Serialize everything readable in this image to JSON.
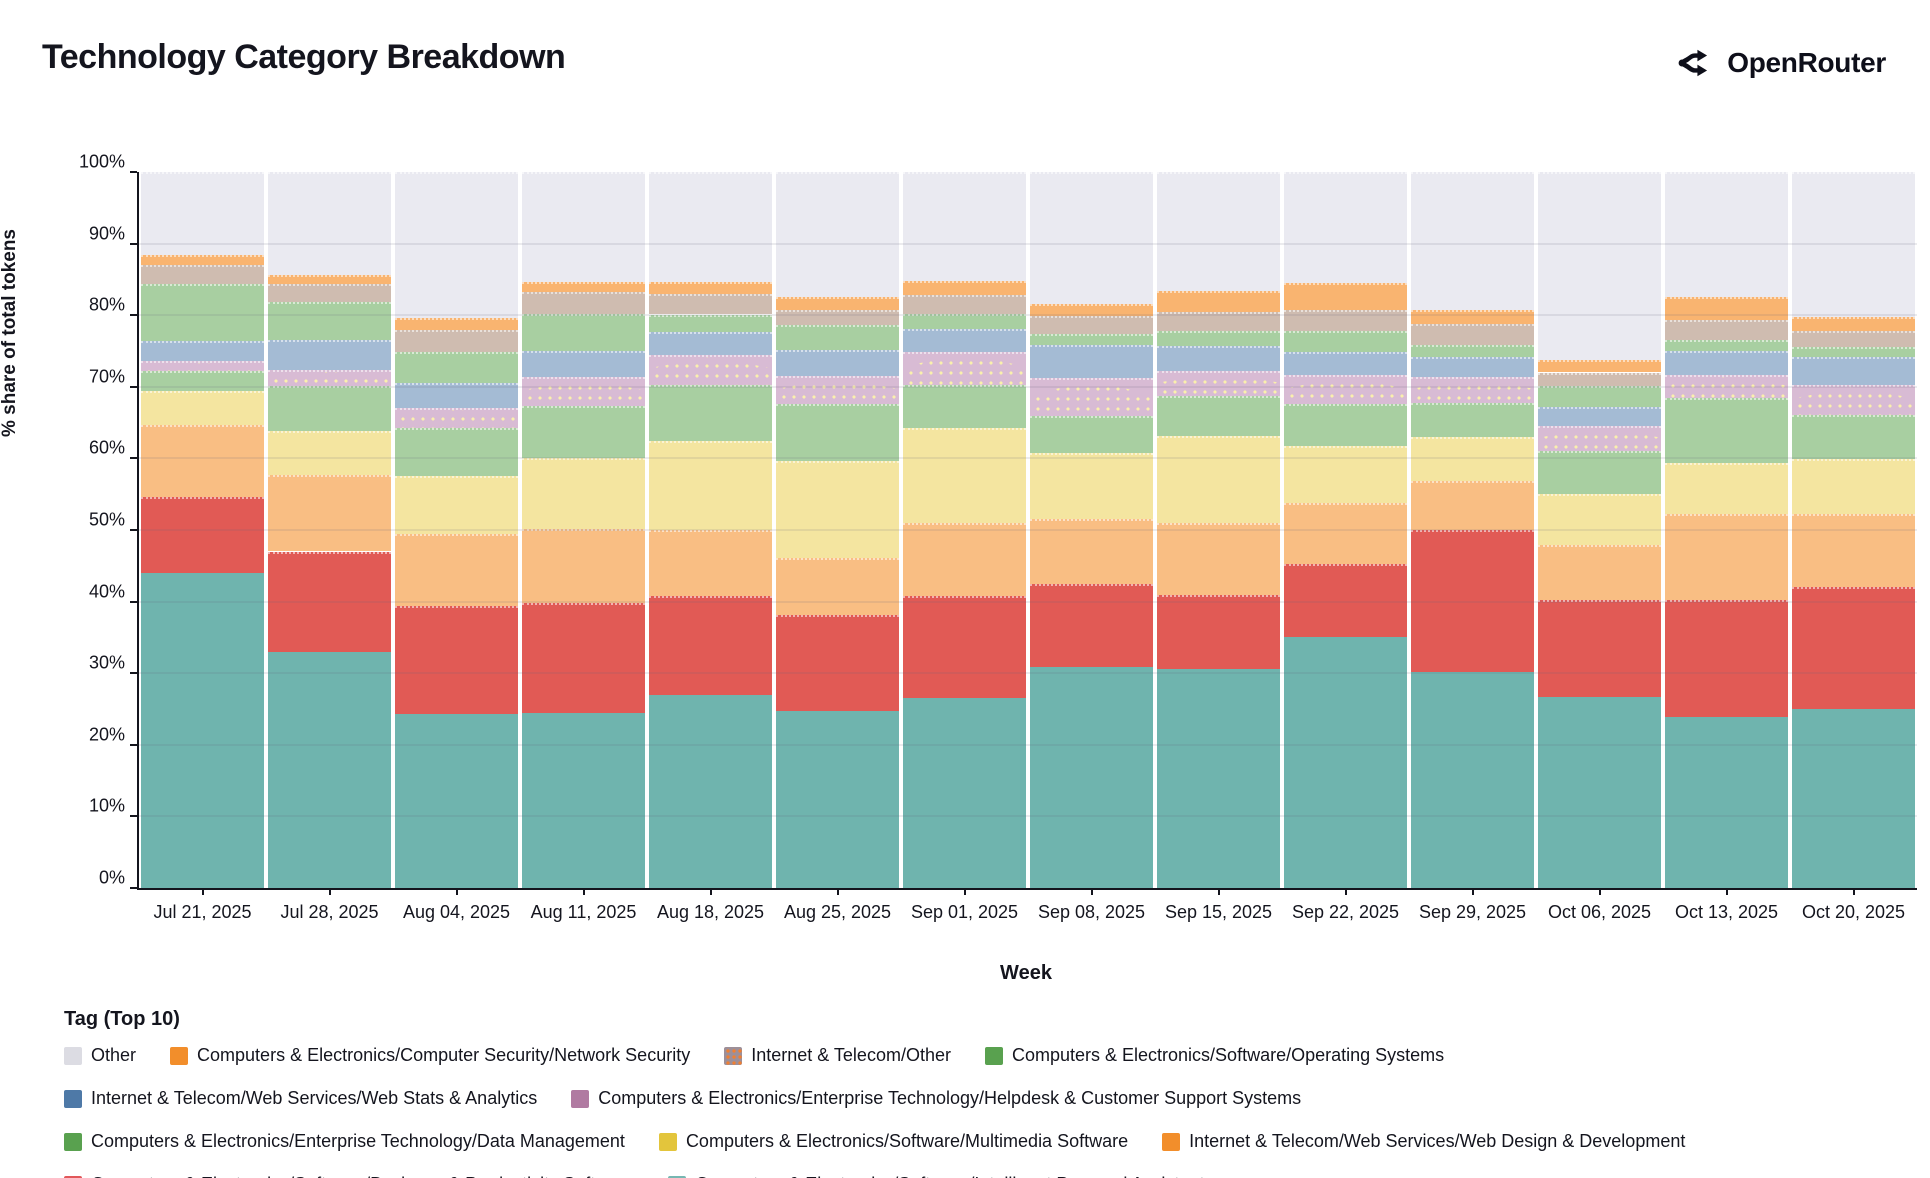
{
  "header": {
    "title": "Technology Category Breakdown",
    "brand": "OpenRouter"
  },
  "axes": {
    "y_title": "% share of total tokens",
    "x_title": "Week",
    "y_ticks": [
      "0%",
      "10%",
      "20%",
      "30%",
      "40%",
      "50%",
      "60%",
      "70%",
      "80%",
      "90%",
      "100%"
    ]
  },
  "legend": {
    "title": "Tag (Top 10)",
    "items": [
      {
        "label": "Other",
        "color": "#dcdce3",
        "dotted": false,
        "row": 1
      },
      {
        "label": "Computers & Electronics/Computer Security/Network Security",
        "color": "#f28e2b",
        "dotted": false,
        "row": 1
      },
      {
        "label": "Internet & Telecom/Other",
        "color": "#9d8f98",
        "dotted": true,
        "row": 1
      },
      {
        "label": "Computers & Electronics/Software/Operating Systems",
        "color": "#59a14f",
        "dotted": false,
        "row": 1
      },
      {
        "label": "Internet & Telecom/Web Services/Web Stats & Analytics",
        "color": "#4e79a7",
        "dotted": false,
        "row": 2
      },
      {
        "label": "Computers & Electronics/Enterprise Technology/Helpdesk & Customer Support Systems",
        "color": "#b07aa1",
        "dotted": false,
        "row": 2
      },
      {
        "label": "Computers & Electronics/Enterprise Technology/Data Management",
        "color": "#59a14f",
        "dotted": false,
        "row": 3
      },
      {
        "label": "Computers & Electronics/Software/Multimedia Software",
        "color": "#e3c53c",
        "dotted": false,
        "row": 3
      },
      {
        "label": "Internet & Telecom/Web Services/Web Design & Development",
        "color": "#f28e2b",
        "dotted": false,
        "row": 3
      },
      {
        "label": "Computers & Electronics/Software/Business & Productivity Software",
        "color": "#e15759",
        "dotted": false,
        "row": 4
      },
      {
        "label": "Computers & Electronics/Software/Intelligent Personal Assistants",
        "color": "#76b7b2",
        "dotted": false,
        "row": 4
      }
    ]
  },
  "chart_data": {
    "type": "bar",
    "subtype": "stacked-100-percent",
    "title": "Technology Category Breakdown",
    "xlabel": "Week",
    "ylabel": "% share of total tokens",
    "ylim": [
      0,
      100
    ],
    "grid": "horizontal, every 10%",
    "legend_position": "bottom",
    "categories": [
      "Jul 21, 2025",
      "Jul 28, 2025",
      "Aug 04, 2025",
      "Aug 11, 2025",
      "Aug 18, 2025",
      "Aug 25, 2025",
      "Sep 01, 2025",
      "Sep 08, 2025",
      "Sep 15, 2025",
      "Sep 22, 2025",
      "Sep 29, 2025",
      "Oct 06, 2025",
      "Oct 13, 2025",
      "Oct 20, 2025"
    ],
    "units": "% of total tokens",
    "stack_order": "bottom to top as listed",
    "series": [
      {
        "name": "Computers & Electronics/Software/Intelligent Personal Assistants",
        "bar_color": "#6fb4ae",
        "dots": false,
        "values": [
          44.0,
          33.0,
          24.3,
          24.5,
          27.0,
          24.7,
          26.6,
          30.8,
          30.6,
          35.0,
          30.1,
          26.7,
          23.9,
          25.0
        ]
      },
      {
        "name": "Computers & Electronics/Software/Business & Productivity Software",
        "bar_color": "#e15a55",
        "dots": false,
        "values": [
          10.6,
          14.0,
          15.1,
          15.3,
          13.8,
          13.4,
          14.2,
          11.6,
          10.3,
          10.2,
          19.9,
          13.5,
          16.3,
          17.0
        ]
      },
      {
        "name": "Internet & Telecom/Web Services/Web Design & Development",
        "bar_color": "#f9be83",
        "dots": false,
        "values": [
          10.0,
          10.7,
          10.1,
          10.3,
          9.2,
          8.0,
          10.2,
          9.1,
          10.1,
          8.6,
          6.8,
          7.7,
          12.1,
          10.3
        ]
      },
      {
        "name": "Computers & Electronics/Software/Multimedia Software",
        "bar_color": "#f4e5a0",
        "dots": false,
        "values": [
          4.8,
          6.1,
          8.0,
          9.9,
          12.4,
          13.5,
          13.3,
          9.3,
          12.1,
          7.9,
          6.2,
          7.1,
          7.0,
          7.6
        ]
      },
      {
        "name": "Computers & Electronics/Enterprise Technology/Data Management",
        "bar_color": "#a8cfa1",
        "dots": false,
        "values": [
          2.8,
          6.3,
          6.7,
          7.3,
          7.9,
          8.0,
          6.0,
          5.1,
          5.6,
          5.9,
          4.8,
          6.1,
          9.1,
          6.1
        ]
      },
      {
        "name": "Computers & Electronics/Enterprise Technology/Helpdesk & Customer Support Systems",
        "bar_color": "#d8bbd4",
        "dots": true,
        "values": [
          1.4,
          2.3,
          2.9,
          4.1,
          4.2,
          3.9,
          4.6,
          5.3,
          3.5,
          4.0,
          3.6,
          3.4,
          3.3,
          4.3
        ]
      },
      {
        "name": "Internet & Telecom/Web Services/Web Stats & Analytics",
        "bar_color": "#a4bbd4",
        "dots": false,
        "values": [
          2.8,
          4.1,
          3.5,
          3.6,
          3.1,
          3.7,
          3.2,
          4.7,
          3.5,
          3.2,
          2.8,
          2.7,
          3.3,
          3.9
        ]
      },
      {
        "name": "Computers & Electronics/Software/Operating Systems",
        "bar_color": "#a8cfa1",
        "dots": false,
        "values": [
          7.9,
          5.3,
          4.2,
          5.1,
          2.5,
          3.4,
          2.1,
          1.5,
          2.1,
          3.0,
          1.7,
          2.9,
          1.5,
          1.4
        ]
      },
      {
        "name": "Internet & Telecom/Other",
        "bar_color": "#cfbcb0",
        "dots": false,
        "values": [
          2.7,
          2.6,
          3.2,
          3.1,
          2.9,
          2.1,
          2.6,
          2.5,
          2.6,
          2.9,
          2.9,
          1.9,
          2.8,
          2.2
        ]
      },
      {
        "name": "Computers & Electronics/Computer Security/Network Security",
        "bar_color": "#f9b470",
        "dots": false,
        "values": [
          1.4,
          1.2,
          1.6,
          1.4,
          1.6,
          1.8,
          2.0,
          1.7,
          3.0,
          3.8,
          1.9,
          1.7,
          3.2,
          1.9
        ]
      },
      {
        "name": "Other",
        "bar_color": "#eaeaf1",
        "dots": false,
        "values": [
          11.6,
          14.4,
          20.4,
          15.4,
          15.4,
          17.5,
          15.2,
          18.4,
          16.6,
          15.5,
          19.3,
          26.3,
          17.5,
          20.3
        ]
      }
    ]
  }
}
